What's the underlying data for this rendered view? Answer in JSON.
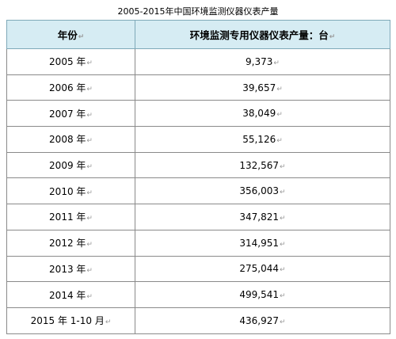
{
  "caption": "2005-2015年中国环境监测仪器仪表产量",
  "paragraph_mark": "↵",
  "table": {
    "headers": [
      "年份",
      "环境监测专用仪器仪表产量：台"
    ],
    "rows": [
      {
        "year": "2005 年",
        "output": "9,373"
      },
      {
        "year": "2006 年",
        "output": "39,657"
      },
      {
        "year": "2007 年",
        "output": "38,049"
      },
      {
        "year": "2008 年",
        "output": "55,126"
      },
      {
        "year": "2009 年",
        "output": "132,567"
      },
      {
        "year": "2010 年",
        "output": "356,003"
      },
      {
        "year": "2011 年",
        "output": "347,821"
      },
      {
        "year": "2012 年",
        "output": "314,951"
      },
      {
        "year": "2013 年",
        "output": "275,044"
      },
      {
        "year": "2014 年",
        "output": "499,541"
      },
      {
        "year": "2015 年 1-10 月",
        "output": "436,927"
      }
    ]
  }
}
